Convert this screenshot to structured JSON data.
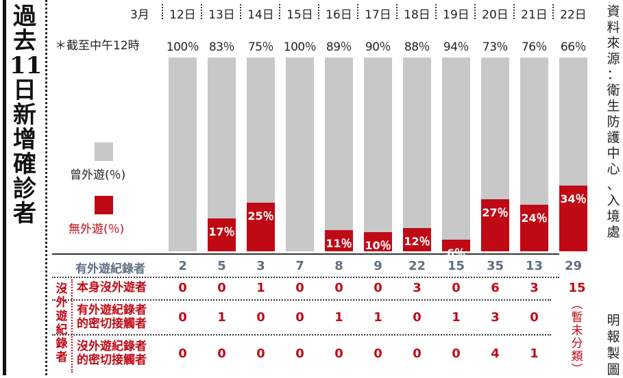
{
  "title": [
    "過",
    "去",
    "11",
    "日",
    "新",
    "增",
    "確",
    "診",
    "者"
  ],
  "source": [
    "資",
    "料",
    "來",
    "源",
    "：",
    "衛",
    "生",
    "防",
    "護",
    "中",
    "心",
    "、",
    "入",
    "境",
    "處"
  ],
  "credit": [
    "明",
    "報",
    "製",
    "圖"
  ],
  "month": "3月",
  "note": "＊截至中午12時",
  "legend": {
    "traveled": "曾外遊(％)",
    "not_traveled": "無外遊(％)"
  },
  "colors": {
    "traveled": "#c8c8c8",
    "not_traveled": "#bf0a16",
    "traveled_count": "#5f6f84"
  },
  "chart_data": {
    "type": "bar",
    "stacked": true,
    "categories": [
      "12日",
      "13日",
      "14日",
      "15日",
      "16日",
      "17日",
      "18日",
      "19日",
      "20日",
      "21日",
      "22日"
    ],
    "series": [
      {
        "name": "曾外遊(％)",
        "values": [
          100,
          83,
          75,
          100,
          89,
          90,
          88,
          94,
          73,
          76,
          66
        ],
        "labels": [
          "100％",
          "83％",
          "75％",
          "100％",
          "89％",
          "90％",
          "88％",
          "94％",
          "73％",
          "76％",
          "66％"
        ]
      },
      {
        "name": "無外遊(％)",
        "values": [
          0,
          17,
          25,
          0,
          11,
          10,
          12,
          6,
          27,
          24,
          34
        ],
        "labels": [
          "",
          "17％",
          "25％",
          "",
          "11％",
          "10％",
          "12％",
          "6％",
          "27％",
          "24％",
          "34％"
        ]
      }
    ],
    "ylim": [
      0,
      100
    ]
  },
  "table": {
    "traveled_label": "有外遊紀錄者",
    "traveled": [
      "2",
      "5",
      "3",
      "7",
      "8",
      "9",
      "22",
      "15",
      "35",
      "13",
      "29"
    ],
    "group_label": [
      "沒",
      "外",
      "遊",
      "紀",
      "錄",
      "者"
    ],
    "rows": [
      {
        "label": [
          "本身沒外遊者"
        ],
        "values": [
          "0",
          "0",
          "1",
          "0",
          "0",
          "0",
          "3",
          "0",
          "6",
          "3"
        ]
      },
      {
        "label": [
          "有外遊紀錄者",
          "的密切接觸者"
        ],
        "values": [
          "0",
          "1",
          "0",
          "0",
          "1",
          "1",
          "0",
          "1",
          "3",
          "0"
        ]
      },
      {
        "label": [
          "沒外遊紀錄者",
          "的密切接觸者"
        ],
        "values": [
          "0",
          "0",
          "0",
          "0",
          "0",
          "0",
          "0",
          "0",
          "4",
          "1"
        ]
      }
    ],
    "last_value": "15",
    "pending": [
      "︵",
      "暫",
      "未",
      "分",
      "類",
      "︶"
    ]
  }
}
